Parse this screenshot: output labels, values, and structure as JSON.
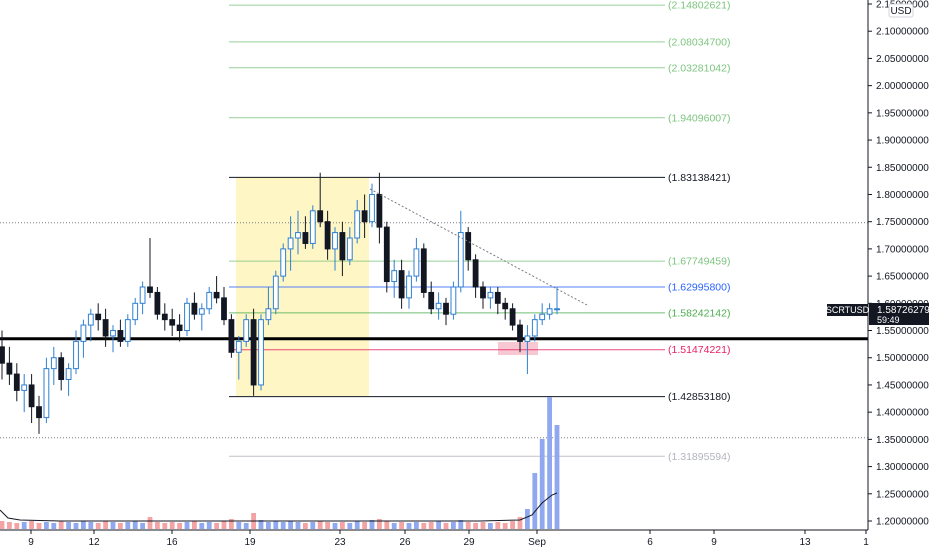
{
  "chart_data": {
    "type": "candlestick",
    "symbol": "SCRTUSD",
    "currency": "USD",
    "current_price": "1.58726279",
    "countdown": "59:49",
    "price_ticks": [
      "2.15000000",
      "2.10000000",
      "2.05000000",
      "2.00000000",
      "1.95000000",
      "1.90000000",
      "1.85000000",
      "1.80000000",
      "1.75000000",
      "1.70000000",
      "1.65000000",
      "1.60000000",
      "1.55000000",
      "1.50000000",
      "1.45000000",
      "1.40000000",
      "1.35000000",
      "1.30000000",
      "1.25000000",
      "1.20000000"
    ],
    "date_ticks": [
      "9",
      "12",
      "16",
      "19",
      "23",
      "26",
      "29",
      "Sep",
      "6",
      "9",
      "13",
      "1"
    ],
    "fib_levels": [
      {
        "label": "(2.14802621)",
        "value": 2.14802621,
        "color": "#7cc47f"
      },
      {
        "label": "(2.08034700)",
        "value": 2.080347,
        "color": "#7cc47f"
      },
      {
        "label": "(2.03281042)",
        "value": 2.03281042,
        "color": "#7cc47f"
      },
      {
        "label": "(1.94096007)",
        "value": 1.94096007,
        "color": "#7cc47f"
      },
      {
        "label": "(1.83138421)",
        "value": 1.83138421,
        "color": "#131722"
      },
      {
        "label": "(1.67749459)",
        "value": 1.67749459,
        "color": "#7cc47f"
      },
      {
        "label": "(1.62995800)",
        "value": 1.629958,
        "color": "#2962ff"
      },
      {
        "label": "(1.58242142)",
        "value": 1.58242142,
        "color": "#4caf50"
      },
      {
        "label": "(1.51474221)",
        "value": 1.51474221,
        "color": "#e91e63"
      },
      {
        "label": "(1.42853180)",
        "value": 1.4285318,
        "color": "#131722"
      },
      {
        "label": "(1.31895594)",
        "value": 1.31895594,
        "color": "#b2b5be"
      }
    ],
    "support_level": 1.535,
    "dotted_levels": [
      1.748,
      1.353
    ],
    "yrange": [
      1.18,
      2.16
    ],
    "candles": [
      [
        1.52,
        1.55,
        1.46,
        1.49
      ],
      [
        1.49,
        1.52,
        1.45,
        1.47
      ],
      [
        1.47,
        1.49,
        1.42,
        1.44
      ],
      [
        1.44,
        1.47,
        1.4,
        1.45
      ],
      [
        1.45,
        1.47,
        1.38,
        1.41
      ],
      [
        1.41,
        1.43,
        1.36,
        1.39
      ],
      [
        1.39,
        1.5,
        1.38,
        1.48
      ],
      [
        1.48,
        1.52,
        1.45,
        1.5
      ],
      [
        1.5,
        1.51,
        1.44,
        1.46
      ],
      [
        1.46,
        1.49,
        1.43,
        1.48
      ],
      [
        1.48,
        1.55,
        1.47,
        1.53
      ],
      [
        1.53,
        1.57,
        1.5,
        1.56
      ],
      [
        1.56,
        1.59,
        1.53,
        1.58
      ],
      [
        1.58,
        1.6,
        1.55,
        1.57
      ],
      [
        1.57,
        1.59,
        1.52,
        1.54
      ],
      [
        1.54,
        1.56,
        1.51,
        1.55
      ],
      [
        1.55,
        1.57,
        1.52,
        1.53
      ],
      [
        1.53,
        1.58,
        1.52,
        1.57
      ],
      [
        1.57,
        1.61,
        1.56,
        1.6
      ],
      [
        1.6,
        1.64,
        1.58,
        1.63
      ],
      [
        1.63,
        1.72,
        1.61,
        1.62
      ],
      [
        1.62,
        1.63,
        1.57,
        1.58
      ],
      [
        1.58,
        1.6,
        1.55,
        1.57
      ],
      [
        1.57,
        1.59,
        1.54,
        1.56
      ],
      [
        1.56,
        1.58,
        1.53,
        1.55
      ],
      [
        1.55,
        1.61,
        1.54,
        1.6
      ],
      [
        1.6,
        1.62,
        1.57,
        1.58
      ],
      [
        1.58,
        1.6,
        1.55,
        1.59
      ],
      [
        1.59,
        1.63,
        1.58,
        1.62
      ],
      [
        1.62,
        1.65,
        1.6,
        1.61
      ],
      [
        1.61,
        1.63,
        1.56,
        1.57
      ],
      [
        1.57,
        1.58,
        1.5,
        1.51
      ],
      [
        1.51,
        1.54,
        1.46,
        1.53
      ],
      [
        1.53,
        1.58,
        1.52,
        1.57
      ],
      [
        1.57,
        1.59,
        1.43,
        1.45
      ],
      [
        1.45,
        1.58,
        1.44,
        1.57
      ],
      [
        1.57,
        1.63,
        1.56,
        1.59
      ],
      [
        1.59,
        1.66,
        1.58,
        1.65
      ],
      [
        1.65,
        1.71,
        1.64,
        1.7
      ],
      [
        1.7,
        1.76,
        1.66,
        1.72
      ],
      [
        1.72,
        1.77,
        1.69,
        1.73
      ],
      [
        1.73,
        1.76,
        1.7,
        1.71
      ],
      [
        1.71,
        1.78,
        1.7,
        1.77
      ],
      [
        1.77,
        1.84,
        1.74,
        1.75
      ],
      [
        1.75,
        1.77,
        1.68,
        1.7
      ],
      [
        1.7,
        1.74,
        1.66,
        1.73
      ],
      [
        1.73,
        1.75,
        1.65,
        1.68
      ],
      [
        1.68,
        1.74,
        1.67,
        1.72
      ],
      [
        1.72,
        1.79,
        1.71,
        1.77
      ],
      [
        1.77,
        1.8,
        1.72,
        1.75
      ],
      [
        1.75,
        1.82,
        1.74,
        1.8
      ],
      [
        1.8,
        1.84,
        1.71,
        1.74
      ],
      [
        1.74,
        1.75,
        1.62,
        1.64
      ],
      [
        1.64,
        1.68,
        1.61,
        1.66
      ],
      [
        1.66,
        1.68,
        1.59,
        1.61
      ],
      [
        1.61,
        1.66,
        1.59,
        1.65
      ],
      [
        1.65,
        1.72,
        1.64,
        1.7
      ],
      [
        1.7,
        1.71,
        1.61,
        1.62
      ],
      [
        1.62,
        1.64,
        1.58,
        1.59
      ],
      [
        1.59,
        1.62,
        1.57,
        1.6
      ],
      [
        1.6,
        1.61,
        1.56,
        1.58
      ],
      [
        1.58,
        1.64,
        1.57,
        1.63
      ],
      [
        1.63,
        1.77,
        1.62,
        1.73
      ],
      [
        1.73,
        1.74,
        1.66,
        1.68
      ],
      [
        1.68,
        1.69,
        1.61,
        1.63
      ],
      [
        1.63,
        1.64,
        1.59,
        1.61
      ],
      [
        1.61,
        1.63,
        1.59,
        1.62
      ],
      [
        1.62,
        1.63,
        1.58,
        1.6
      ],
      [
        1.6,
        1.61,
        1.57,
        1.59
      ],
      [
        1.59,
        1.6,
        1.55,
        1.56
      ],
      [
        1.56,
        1.57,
        1.51,
        1.53
      ],
      [
        1.53,
        1.56,
        1.47,
        1.54
      ],
      [
        1.54,
        1.58,
        1.53,
        1.57
      ],
      [
        1.57,
        1.6,
        1.56,
        1.58
      ],
      [
        1.58,
        1.6,
        1.57,
        1.59
      ],
      [
        1.59,
        1.63,
        1.58,
        1.59
      ]
    ],
    "volumes": [
      0.4,
      0.35,
      0.3,
      0.35,
      0.4,
      0.3,
      0.35,
      0.3,
      0.4,
      0.35,
      0.3,
      0.4,
      0.35,
      0.3,
      0.4,
      0.35,
      0.3,
      0.35,
      0.4,
      0.3,
      0.6,
      0.35,
      0.3,
      0.35,
      0.3,
      0.35,
      0.4,
      0.3,
      0.35,
      0.3,
      0.4,
      0.5,
      0.35,
      0.3,
      0.8,
      0.45,
      0.35,
      0.4,
      0.35,
      0.4,
      0.35,
      0.3,
      0.35,
      0.4,
      0.35,
      0.3,
      0.35,
      0.3,
      0.4,
      0.35,
      0.45,
      0.5,
      0.4,
      0.3,
      0.35,
      0.3,
      0.35,
      0.3,
      0.35,
      0.4,
      0.3,
      0.35,
      0.45,
      0.35,
      0.3,
      0.35,
      0.3,
      0.35,
      0.3,
      0.4,
      0.6,
      1.0,
      2.8,
      4.5,
      6.6,
      5.2
    ]
  }
}
